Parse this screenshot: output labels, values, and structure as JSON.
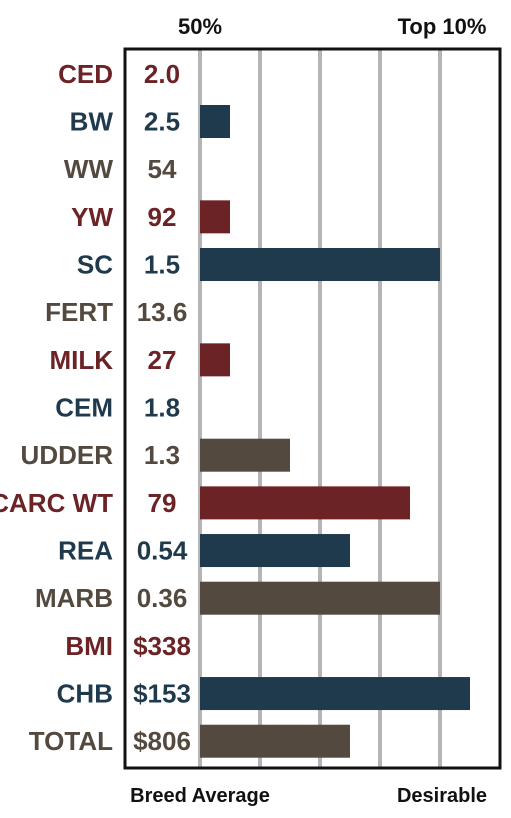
{
  "chart_data": {
    "type": "bar",
    "orientation": "horizontal",
    "top_labels": [
      "50%",
      "Top 10%"
    ],
    "bottom_labels": [
      "Breed Average",
      "Desirable"
    ],
    "xlim": [
      0,
      9
    ],
    "grid": true,
    "colors": {
      "red": "#6b2326",
      "blue": "#1f3a4c",
      "gray": "#54493f",
      "grid": "#b5b4b8",
      "border": "#111111"
    },
    "rows": [
      {
        "trait": "CED",
        "value_text": "2.0",
        "bar": 0,
        "color": "red"
      },
      {
        "trait": "BW",
        "value_text": "2.5",
        "bar": 1,
        "color": "blue"
      },
      {
        "trait": "WW",
        "value_text": "54",
        "bar": 0,
        "color": "gray"
      },
      {
        "trait": "YW",
        "value_text": "92",
        "bar": 1,
        "color": "red"
      },
      {
        "trait": "SC",
        "value_text": "1.5",
        "bar": 8,
        "color": "blue"
      },
      {
        "trait": "FERT",
        "value_text": "13.6",
        "bar": 0,
        "color": "gray"
      },
      {
        "trait": "MILK",
        "value_text": "27",
        "bar": 1,
        "color": "red"
      },
      {
        "trait": "CEM",
        "value_text": "1.8",
        "bar": 0,
        "color": "blue"
      },
      {
        "trait": "UDDER",
        "value_text": "1.3",
        "bar": 3,
        "color": "gray"
      },
      {
        "trait": "CARC WT",
        "value_text": "79",
        "bar": 7,
        "color": "red"
      },
      {
        "trait": "REA",
        "value_text": "0.54",
        "bar": 5,
        "color": "blue"
      },
      {
        "trait": "MARB",
        "value_text": "0.36",
        "bar": 8,
        "color": "gray"
      },
      {
        "trait": "BMI",
        "value_text": "$338",
        "bar": 0,
        "color": "red"
      },
      {
        "trait": "CHB",
        "value_text": "$153",
        "bar": 9,
        "color": "blue"
      },
      {
        "trait": "TOTAL",
        "value_text": "$806",
        "bar": 5,
        "color": "gray"
      }
    ]
  }
}
